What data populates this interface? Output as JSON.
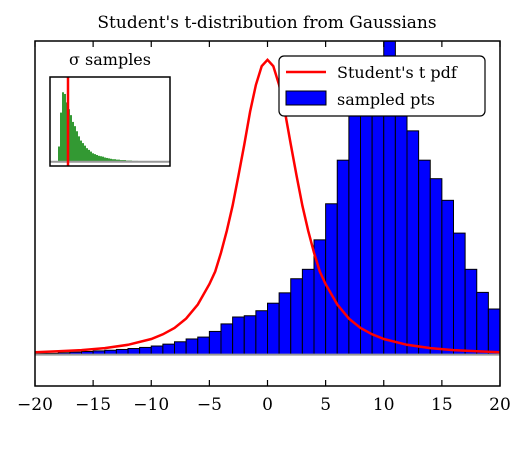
{
  "chart_data": [
    {
      "type": "bar",
      "title": "Student's t-distribution from Gaussians",
      "xlabel": "",
      "ylabel": "",
      "xlim": [
        -20,
        20
      ],
      "ylim": [
        -0.02,
        0.2
      ],
      "grid": false,
      "legend_placement": "top-right",
      "bin_width": 1,
      "bin_start": -20,
      "x_ticks": [
        -20,
        -15,
        -10,
        -5,
        0,
        5,
        10,
        15,
        20
      ],
      "x_tick_labels": [
        "−20",
        "−15",
        "−10",
        "−5",
        "0",
        "5",
        "10",
        "15",
        "20"
      ],
      "series": [
        {
          "name": "sampled pts",
          "kind": "histogram",
          "color": "#0000ff",
          "values": [
            0.0008,
            0.0008,
            0.0012,
            0.0016,
            0.002,
            0.0024,
            0.0028,
            0.0033,
            0.0039,
            0.0046,
            0.0055,
            0.0067,
            0.0082,
            0.01,
            0.0112,
            0.0148,
            0.0196,
            0.024,
            0.0248,
            0.028,
            0.0328,
            0.0394,
            0.0484,
            0.0544,
            0.0732,
            0.0962,
            0.124,
            0.1528,
            0.1734,
            0.185,
            0.1999,
            0.1734,
            0.1427,
            0.124,
            0.1122,
            0.0984,
            0.0775,
            0.0544,
            0.0397,
            0.0291,
            0.025,
            0.0196,
            0.0148,
            0.0112,
            0.0103,
            0.0082,
            0.0082,
            0.0067,
            0.0055,
            0.0055,
            0.0046,
            0.0039,
            0.0055,
            0.0046,
            0.0033,
            0.0028,
            0.0024,
            0.0016,
            0.0024,
            0.002,
            0.0016,
            0.0012,
            0.0024,
            0.0024,
            0.0016,
            0.0012,
            0.0012,
            0.0008,
            0.0008,
            0.0008
          ]
        },
        {
          "name": "Student's t pdf",
          "kind": "line",
          "color": "#ff0000",
          "x": [
            -20,
            -18,
            -16,
            -14,
            -12,
            -10,
            -9,
            -8,
            -7,
            -6,
            -5,
            -4.5,
            -4,
            -3.5,
            -3,
            -2.5,
            -2,
            -1.5,
            -1,
            -0.5,
            0,
            0.5,
            1,
            1.5,
            2,
            2.5,
            3,
            3.5,
            4,
            4.5,
            5,
            6,
            7,
            8,
            9,
            10,
            12,
            14,
            16,
            18,
            20
          ],
          "values": [
            0.0015,
            0.0021,
            0.0029,
            0.0042,
            0.0063,
            0.01,
            0.013,
            0.017,
            0.023,
            0.032,
            0.045,
            0.053,
            0.065,
            0.079,
            0.095,
            0.114,
            0.134,
            0.155,
            0.172,
            0.184,
            0.188,
            0.184,
            0.172,
            0.155,
            0.134,
            0.114,
            0.095,
            0.079,
            0.065,
            0.053,
            0.045,
            0.032,
            0.023,
            0.017,
            0.013,
            0.01,
            0.0063,
            0.0042,
            0.0029,
            0.0021,
            0.0015
          ]
        }
      ]
    },
    {
      "type": "bar",
      "title": "σ samples",
      "xlabel": "",
      "ylabel": "",
      "ticks_visible": false,
      "xlim": [
        0,
        60
      ],
      "ylim": [
        -0.05,
        1.0
      ],
      "series": [
        {
          "name": "σ samples",
          "kind": "histogram",
          "color": "#339933",
          "bin_width": 1,
          "bin_start": 4,
          "values": [
            0.18,
            0.58,
            0.82,
            0.8,
            0.7,
            0.62,
            0.55,
            0.47,
            0.42,
            0.36,
            0.3,
            0.25,
            0.22,
            0.19,
            0.16,
            0.14,
            0.12,
            0.1,
            0.09,
            0.08,
            0.07,
            0.065,
            0.06,
            0.05,
            0.045,
            0.04,
            0.035,
            0.03,
            0.03,
            0.025,
            0.025,
            0.02,
            0.02,
            0.02,
            0.015,
            0.015,
            0.015,
            0.01,
            0.01,
            0.01
          ]
        }
      ],
      "marker_line": {
        "x": 9,
        "color": "#ff0000"
      }
    }
  ]
}
